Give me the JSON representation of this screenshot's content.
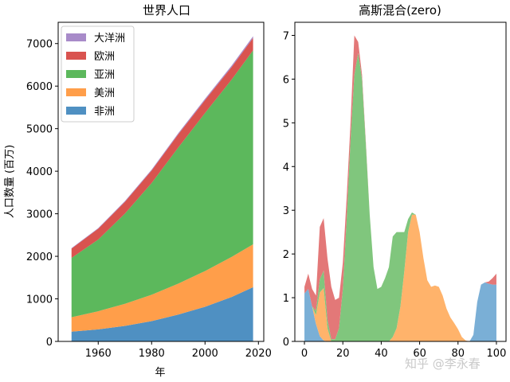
{
  "watermark": "知乎 @李永春",
  "chart_data": [
    {
      "type": "area",
      "stacked": true,
      "title": "世界人口",
      "xlabel": "年",
      "ylabel": "人口数量 (百万)",
      "xlim": [
        1945,
        2022
      ],
      "ylim": [
        0,
        7500
      ],
      "xticks": [
        1960,
        1980,
        2000,
        2020
      ],
      "yticks": [
        0,
        1000,
        2000,
        3000,
        4000,
        5000,
        6000,
        7000
      ],
      "legend_position": "upper-left",
      "x": [
        1950,
        1960,
        1970,
        1980,
        1990,
        2000,
        2010,
        2018
      ],
      "series": [
        {
          "name": "非洲",
          "color": "#4f90c2",
          "values": [
            228,
            284,
            365,
            477,
            631,
            814,
            1044,
            1275
          ]
        },
        {
          "name": "美洲",
          "color": "#ff9e4a",
          "values": [
            340,
            425,
            519,
            619,
            727,
            840,
            943,
            1006
          ]
        },
        {
          "name": "亚洲",
          "color": "#5cb85c",
          "values": [
            1394,
            1686,
            2120,
            2625,
            3202,
            3714,
            4169,
            4560
          ]
        },
        {
          "name": "欧洲",
          "color": "#d9534f",
          "values": [
            220,
            253,
            276,
            295,
            310,
            303,
            294,
            293
          ]
        },
        {
          "name": "大洋洲",
          "color": "#a88bc9",
          "values": [
            12,
            15,
            19,
            22,
            26,
            31,
            36,
            39
          ]
        }
      ],
      "legend_order": [
        "大洋洲",
        "欧洲",
        "亚洲",
        "美洲",
        "非洲"
      ]
    },
    {
      "type": "area",
      "stacked": true,
      "baseline": "zero",
      "title": "高斯混合(zero)",
      "xlabel": "",
      "ylabel": "",
      "xlim": [
        -5,
        105
      ],
      "ylim": [
        0,
        7.3
      ],
      "xticks": [
        0,
        20,
        40,
        60,
        80,
        100
      ],
      "yticks": [
        0,
        1,
        2,
        3,
        4,
        5,
        6,
        7
      ],
      "x": [
        0,
        2,
        4,
        6,
        8,
        10,
        12,
        14,
        16,
        18,
        20,
        22,
        24,
        26,
        28,
        30,
        32,
        34,
        36,
        38,
        40,
        42,
        44,
        46,
        48,
        50,
        52,
        54,
        56,
        58,
        60,
        62,
        64,
        66,
        68,
        70,
        72,
        74,
        76,
        78,
        80,
        82,
        84,
        86,
        88,
        90,
        92,
        94,
        96,
        98,
        100
      ],
      "series": [
        {
          "name": "",
          "color": "#7aafd6",
          "values": [
            1.1,
            1.2,
            0.8,
            0.4,
            0.12,
            0.02,
            0,
            0,
            0,
            0,
            0,
            0,
            0,
            0,
            0,
            0,
            0,
            0,
            0,
            0,
            0,
            0,
            0,
            0,
            0,
            0,
            0,
            0,
            0,
            0,
            0,
            0,
            0,
            0,
            0,
            0,
            0,
            0,
            0,
            0,
            0,
            0,
            0,
            0,
            0.15,
            0.9,
            1.3,
            1.35,
            1.32,
            1.3,
            1.3
          ]
        },
        {
          "name": "",
          "color": "#ffb36b",
          "values": [
            0,
            0,
            0,
            0.2,
            1.0,
            1.2,
            0.3,
            0,
            0,
            0,
            0,
            0,
            0,
            0,
            0,
            0,
            0,
            0,
            0,
            0,
            0,
            0,
            0,
            0.1,
            0.3,
            0.8,
            1.6,
            2.5,
            2.9,
            2.9,
            2.5,
            1.9,
            1.4,
            1.25,
            1.28,
            1.25,
            1.05,
            0.75,
            0.55,
            0.42,
            0.28,
            0.1,
            0.02,
            0,
            0,
            0,
            0,
            0,
            0,
            0,
            0
          ]
        },
        {
          "name": "",
          "color": "#80c67d",
          "values": [
            0,
            0,
            0,
            0.1,
            0.3,
            0.4,
            0.2,
            0.05,
            0.05,
            0.3,
            1.2,
            2.8,
            4.6,
            6.1,
            6.6,
            6.0,
            4.5,
            2.9,
            1.7,
            1.2,
            1.25,
            1.45,
            1.7,
            2.3,
            2.2,
            1.7,
            0.9,
            0.3,
            0.05,
            0,
            0,
            0,
            0,
            0,
            0,
            0,
            0,
            0,
            0,
            0,
            0,
            0,
            0,
            0,
            0,
            0,
            0,
            0,
            0,
            0,
            0
          ]
        },
        {
          "name": "",
          "color": "#e37878",
          "values": [
            0.15,
            0.35,
            0.4,
            0.35,
            1.2,
            1.2,
            1.4,
            1.2,
            0.9,
            0.7,
            0.6,
            0.5,
            0.4,
            0.9,
            0.25,
            0.1,
            0.05,
            0,
            0,
            0,
            0,
            0,
            0,
            0,
            0,
            0,
            0,
            0,
            0,
            0,
            0,
            0,
            0,
            0,
            0,
            0,
            0,
            0,
            0,
            0,
            0,
            0,
            0,
            0,
            0,
            0,
            0,
            0,
            0.05,
            0.15,
            0.25
          ]
        }
      ]
    }
  ]
}
